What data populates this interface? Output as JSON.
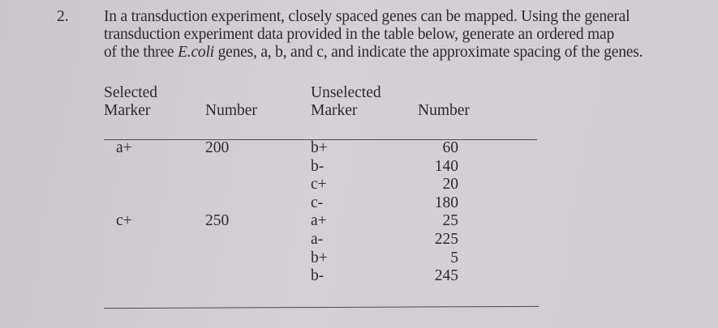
{
  "question": {
    "number": "2.",
    "lines": [
      "In a transduction experiment, closely spaced genes can be mapped.  Using the general",
      "transduction experiment data provided in the table below, generate an ordered map"
    ],
    "line3_before": "of the three ",
    "line3_italic": "E.coli",
    "line3_after": " genes, a, b, and c, and indicate the approximate spacing of the genes."
  },
  "table": {
    "headers": {
      "selected_line1": "Selected",
      "selected_line2": "Marker",
      "number1": "Number",
      "unselected_line1": "Unselected",
      "unselected_line2": "Marker",
      "number2": "Number"
    },
    "groups": [
      {
        "selected": "a+",
        "number": "200",
        "rows": [
          {
            "marker": "b+",
            "number": "60"
          },
          {
            "marker": "b-",
            "number": "140"
          },
          {
            "marker": "c+",
            "number": "20"
          },
          {
            "marker": "c-",
            "number": "180"
          }
        ]
      },
      {
        "selected": "c+",
        "number": "250",
        "rows": [
          {
            "marker": "a+",
            "number": "25"
          },
          {
            "marker": "a-",
            "number": "225"
          },
          {
            "marker": "b+",
            "number": "5"
          },
          {
            "marker": "b-",
            "number": "245"
          }
        ]
      }
    ]
  }
}
